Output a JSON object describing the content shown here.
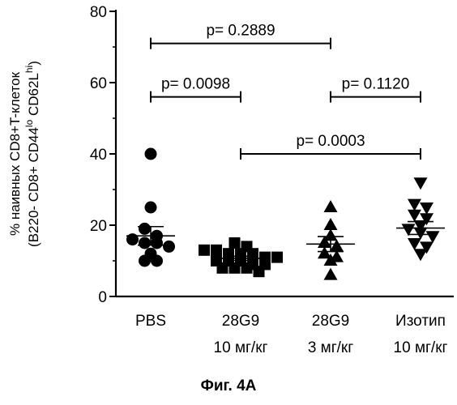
{
  "chart_data": {
    "type": "scatter",
    "ylabel_line1": "% наивных CD8+T-клеток",
    "ylabel_line2_prefix": "(B220- CD8+ CD44",
    "ylabel_sup1": "lo",
    "ylabel_line2_mid": " CD62L",
    "ylabel_sup2": "hi",
    "ylabel_line2_suffix": ")",
    "ylim": [
      0,
      80
    ],
    "yticks": [
      "0",
      "20",
      "40",
      "60",
      "80"
    ],
    "groups": [
      {
        "label_line1": "PBS",
        "label_line2": "",
        "marker": "circle",
        "values": [
          40,
          25,
          19,
          17,
          16,
          15,
          15,
          14,
          12,
          10,
          10
        ],
        "mean": 17.0,
        "sem": 2.6
      },
      {
        "label_line1": "28G9",
        "label_line2": "10 мг/кг",
        "marker": "square",
        "values": [
          15,
          14,
          13,
          13,
          12,
          12,
          12,
          11,
          11,
          10,
          10,
          10,
          9,
          9,
          8,
          8,
          8,
          7
        ],
        "mean": 10.7,
        "sem": 0.6
      },
      {
        "label_line1": "28G9",
        "label_line2": "3 мг/кг",
        "marker": "triangle-up",
        "values": [
          25,
          20,
          17,
          15,
          14,
          12,
          11,
          10,
          6
        ],
        "mean": 14.7,
        "sem": 2.1
      },
      {
        "label_line1": "Изотип",
        "label_line2": "10 мг/кг",
        "marker": "triangle-down",
        "values": [
          32,
          26,
          25,
          23,
          22,
          20,
          19,
          18,
          17,
          15,
          14,
          12
        ],
        "mean": 19.2,
        "sem": 1.8
      }
    ],
    "comparisons": [
      {
        "from": 0,
        "to": 2,
        "y": 71,
        "label": "p= 0.2889"
      },
      {
        "from": 0,
        "to": 1,
        "y": 56,
        "label": "p= 0.0098"
      },
      {
        "from": 2,
        "to": 3,
        "y": 56,
        "label": "p= 0.1120"
      },
      {
        "from": 1,
        "to": 3,
        "y": 40,
        "label": "p= 0.0003"
      }
    ]
  },
  "figure": {
    "caption": "Фиг. 4A"
  }
}
